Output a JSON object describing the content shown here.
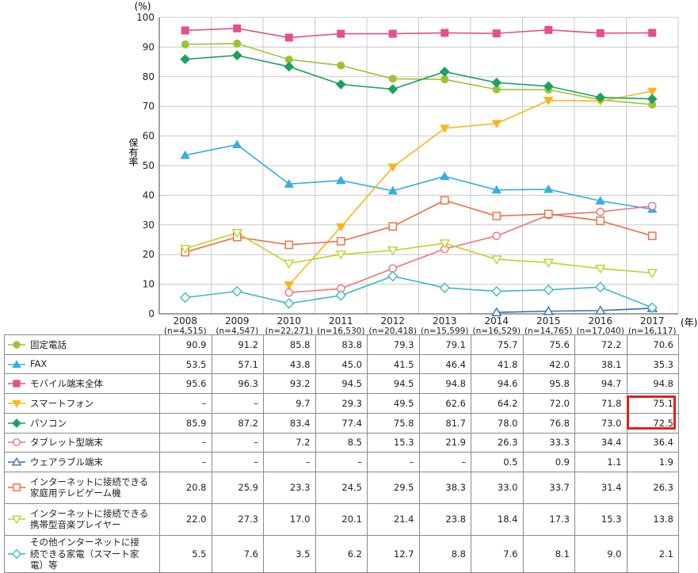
{
  "chart_data": {
    "type": "line",
    "unit_label": "(%)",
    "ylabel": "保有率",
    "xunit_label": "(年)",
    "ylim": [
      0,
      100
    ],
    "yticks": [
      "0",
      "10",
      "20",
      "30",
      "40",
      "50",
      "60",
      "70",
      "80",
      "90",
      "100"
    ],
    "grid": true,
    "x": [
      "2008",
      "2009",
      "2010",
      "2011",
      "2012",
      "2013",
      "2014",
      "2015",
      "2016",
      "2017"
    ],
    "x_n": [
      "(n=4,515)",
      "(n=4,547)",
      "(n=22,271)",
      "(n=16,530)",
      "(n=20,418)",
      "(n=15,599)",
      "(n=16,529)",
      "(n=14,765)",
      "(n=17,040)",
      "(n=16,117)"
    ],
    "series": [
      {
        "name": "固定電話",
        "color": "#9dc332",
        "marker": "circle",
        "values": [
          90.9,
          91.2,
          85.8,
          83.8,
          79.3,
          79.1,
          75.7,
          75.6,
          72.2,
          70.6
        ],
        "cells": [
          "90.9",
          "91.2",
          "85.8",
          "83.8",
          "79.3",
          "79.1",
          "75.7",
          "75.6",
          "72.2",
          "70.6"
        ]
      },
      {
        "name": "FAX",
        "color": "#35aee3",
        "marker": "triangle",
        "values": [
          53.5,
          57.1,
          43.8,
          45.0,
          41.5,
          46.4,
          41.8,
          42.0,
          38.1,
          35.3
        ],
        "cells": [
          "53.5",
          "57.1",
          "43.8",
          "45.0",
          "41.5",
          "46.4",
          "41.8",
          "42.0",
          "38.1",
          "35.3"
        ]
      },
      {
        "name": "モバイル端末全体",
        "color": "#e64e8c",
        "marker": "square",
        "values": [
          95.6,
          96.3,
          93.2,
          94.5,
          94.5,
          94.8,
          94.6,
          95.8,
          94.7,
          94.8
        ],
        "cells": [
          "95.6",
          "96.3",
          "93.2",
          "94.5",
          "94.5",
          "94.8",
          "94.6",
          "95.8",
          "94.7",
          "94.8"
        ]
      },
      {
        "name": "スマートフォン",
        "color": "#f7b718",
        "marker": "triangle-down",
        "values": [
          null,
          null,
          9.7,
          29.3,
          49.5,
          62.6,
          64.2,
          72.0,
          71.8,
          75.1
        ],
        "cells": [
          "–",
          "–",
          "9.7",
          "29.3",
          "49.5",
          "62.6",
          "64.2",
          "72.0",
          "71.8",
          "75.1"
        ]
      },
      {
        "name": "パソコン",
        "color": "#1aa160",
        "marker": "diamond",
        "values": [
          85.9,
          87.2,
          83.4,
          77.4,
          75.8,
          81.7,
          78.0,
          76.8,
          73.0,
          72.5
        ],
        "cells": [
          "85.9",
          "87.2",
          "83.4",
          "77.4",
          "75.8",
          "81.7",
          "78.0",
          "76.8",
          "73.0",
          "72.5"
        ]
      },
      {
        "name": "タブレット型端末",
        "color": "#ee7379",
        "marker": "circle-open",
        "values": [
          null,
          null,
          7.2,
          8.5,
          15.3,
          21.9,
          26.3,
          33.3,
          34.4,
          36.4
        ],
        "cells": [
          "–",
          "–",
          "7.2",
          "8.5",
          "15.3",
          "21.9",
          "26.3",
          "33.3",
          "34.4",
          "36.4"
        ]
      },
      {
        "name": "ウェアラブル端末",
        "color": "#3a6fb4",
        "marker": "triangle-open",
        "values": [
          null,
          null,
          null,
          null,
          null,
          null,
          0.5,
          0.9,
          1.1,
          1.9
        ],
        "cells": [
          "–",
          "–",
          "–",
          "–",
          "–",
          "–",
          "0.5",
          "0.9",
          "1.1",
          "1.9"
        ]
      },
      {
        "name": "インターネットに接続できる家庭用テレビゲーム機",
        "color": "#ee6b3b",
        "marker": "square-open",
        "label_lines": [
          "インターネットに接続できる",
          "家庭用テレビゲーム機"
        ],
        "values": [
          20.8,
          25.9,
          23.3,
          24.5,
          29.5,
          38.3,
          33.0,
          33.7,
          31.4,
          26.3
        ],
        "cells": [
          "20.8",
          "25.9",
          "23.3",
          "24.5",
          "29.5",
          "38.3",
          "33.0",
          "33.7",
          "31.4",
          "26.3"
        ]
      },
      {
        "name": "インターネットに接続できる携帯型音楽プレイヤー",
        "color": "#bcd42c",
        "marker": "triangle-down-open",
        "label_lines": [
          "インターネットに接続できる",
          "携帯型音楽プレイヤー"
        ],
        "values": [
          22.0,
          27.3,
          17.0,
          20.1,
          21.4,
          23.8,
          18.4,
          17.3,
          15.3,
          13.8
        ],
        "cells": [
          "22.0",
          "27.3",
          "17.0",
          "20.1",
          "21.4",
          "23.8",
          "18.4",
          "17.3",
          "15.3",
          "13.8"
        ]
      },
      {
        "name": "その他インターネットに接続できる家電（スマート家電）等",
        "color": "#3fb9c4",
        "marker": "diamond-open",
        "label_lines": [
          "その他インターネットに接",
          "続できる家電（スマート家",
          "電）等"
        ],
        "values": [
          5.5,
          7.6,
          3.5,
          6.2,
          12.7,
          8.8,
          7.6,
          8.1,
          9.0,
          2.1
        ],
        "cells": [
          "5.5",
          "7.6",
          "3.5",
          "6.2",
          "12.7",
          "8.8",
          "7.6",
          "8.1",
          "9.0",
          "2.1"
        ]
      }
    ],
    "highlight": {
      "columns": [
        "2017"
      ],
      "series": [
        "スマートフォン",
        "パソコン"
      ],
      "color": "#e1211f"
    }
  }
}
